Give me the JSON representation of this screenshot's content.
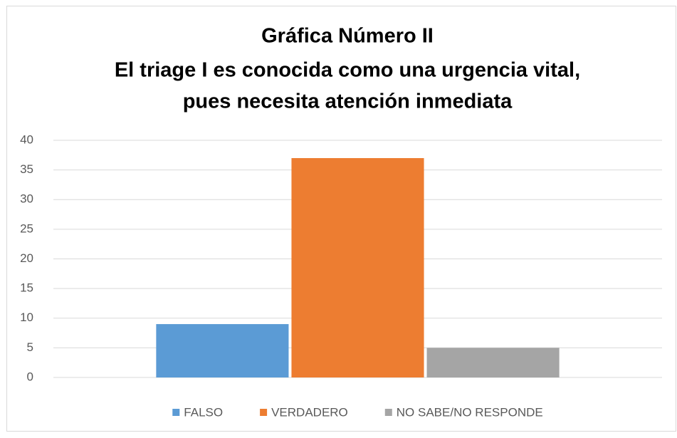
{
  "chart_data": {
    "type": "bar",
    "title": [
      "Gráfica Número II",
      "El triage I es conocida como una urgencia vital,",
      "pues necesita atención inmediata"
    ],
    "categories": [
      null
    ],
    "series": [
      {
        "name": "FALSO",
        "color": "#5b9bd5",
        "values": [
          9
        ]
      },
      {
        "name": "VERDADERO",
        "color": "#ed7d31",
        "values": [
          37
        ]
      },
      {
        "name": "NO SABE/NO RESPONDE",
        "color": "#a5a5a5",
        "values": [
          5
        ]
      }
    ],
    "ylim": [
      0,
      40
    ],
    "yticks": [
      0,
      5,
      10,
      15,
      20,
      25,
      30,
      35,
      40
    ],
    "grid": true,
    "legend": "bottom"
  }
}
